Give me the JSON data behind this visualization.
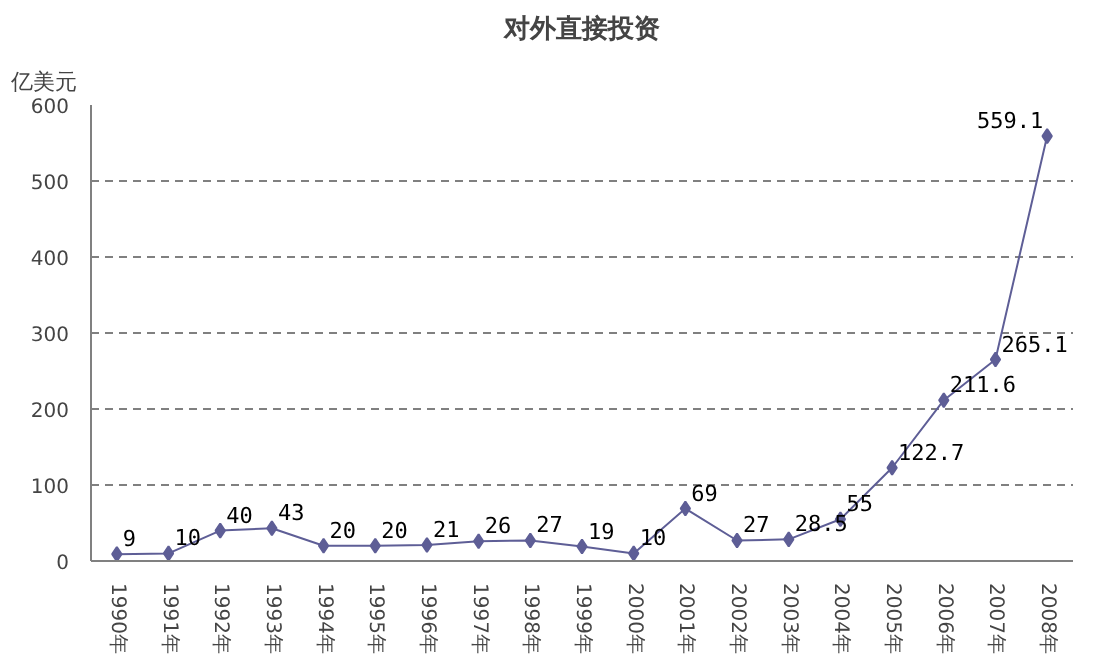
{
  "chart_data": {
    "type": "line",
    "title": "对外直接投资",
    "ylabel": "亿美元",
    "categories": [
      "1990年",
      "1991年",
      "1992年",
      "1993年",
      "1994年",
      "1995年",
      "1996年",
      "1997年",
      "1998年",
      "1999年",
      "2000年",
      "2001年",
      "2002年",
      "2003年",
      "2004年",
      "2005年",
      "2006年",
      "2007年",
      "2008年"
    ],
    "series": [
      {
        "color": "#5e5e96",
        "values": [
          9,
          10,
          40,
          43,
          20,
          20,
          21,
          26,
          27,
          19,
          10,
          69,
          27,
          28.5,
          55,
          122.7,
          211.6,
          265.1,
          559.1
        ]
      }
    ],
    "ylim": [
      0,
      600
    ],
    "yticks": [
      0,
      100,
      200,
      300,
      400,
      500,
      600
    ],
    "grid": "y",
    "marker": "diamond",
    "line_style": "solid",
    "data_labels": true
  }
}
